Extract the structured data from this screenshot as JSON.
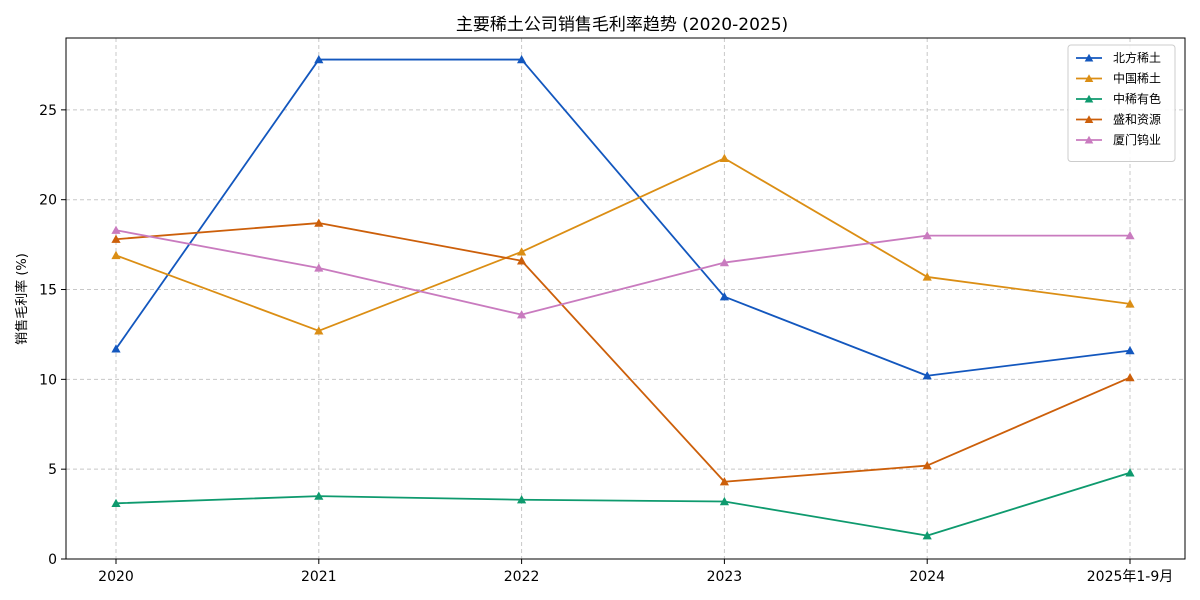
{
  "chart_data": {
    "type": "line",
    "title": "主要稀土公司销售毛利率趋势 (2020-2025)",
    "xlabel": "",
    "ylabel": "销售毛利率 (%)",
    "categories": [
      "2020",
      "2021",
      "2022",
      "2023",
      "2024",
      "2025年1-9月"
    ],
    "ylim": [
      0,
      29
    ],
    "yticks": [
      0,
      5,
      10,
      15,
      20,
      25
    ],
    "grid": true,
    "legend_position": "top-right",
    "series": [
      {
        "name": "北方稀土",
        "color": "#1357be",
        "values": [
          11.7,
          27.8,
          27.8,
          14.6,
          10.2,
          11.6
        ]
      },
      {
        "name": "中国稀土",
        "color": "#db8e14",
        "values": [
          16.9,
          12.7,
          17.1,
          22.3,
          15.7,
          14.2
        ]
      },
      {
        "name": "中稀有色",
        "color": "#0e9a6e",
        "values": [
          3.1,
          3.5,
          3.3,
          3.2,
          1.3,
          4.8
        ]
      },
      {
        "name": "盛和资源",
        "color": "#cc5f0a",
        "values": [
          17.8,
          18.7,
          16.6,
          4.3,
          5.2,
          10.1
        ]
      },
      {
        "name": "厦门钨业",
        "color": "#c97bbf",
        "values": [
          18.3,
          16.2,
          13.6,
          16.5,
          18.0,
          18.0
        ]
      }
    ]
  }
}
